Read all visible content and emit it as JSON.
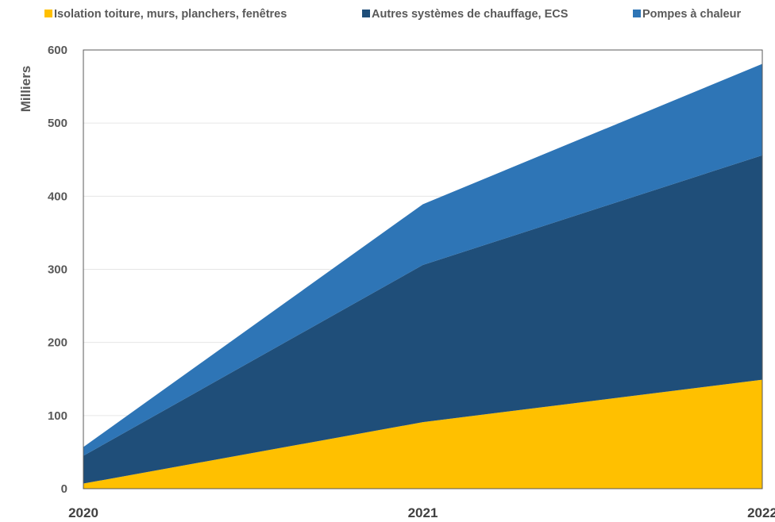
{
  "chart_data": {
    "type": "area",
    "stacked": true,
    "title": "",
    "xlabel": "",
    "ylabel": "Milliers",
    "x": [
      "2020",
      "2021",
      "2022"
    ],
    "ylim": [
      0,
      600
    ],
    "yticks": [
      0,
      100,
      200,
      300,
      400,
      500,
      600
    ],
    "grid": true,
    "legend_position": "top",
    "series": [
      {
        "name": "Isolation toiture, murs, planchers, fenêtres",
        "color": "#FFC000",
        "values": [
          7,
          91,
          149
        ]
      },
      {
        "name": "Autres systèmes de chauffage, ECS",
        "color": "#1F4E79",
        "values": [
          38,
          215,
          307
        ]
      },
      {
        "name": "Pompes à chaleur",
        "color": "#2E75B6",
        "values": [
          12,
          83,
          125
        ]
      }
    ]
  }
}
